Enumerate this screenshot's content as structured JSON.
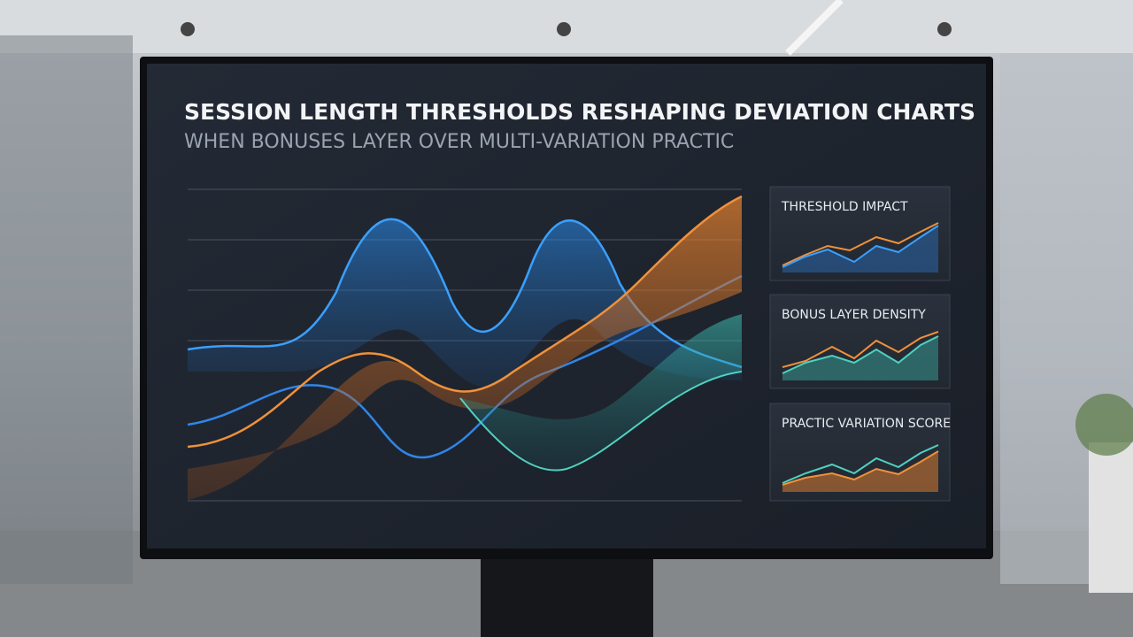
{
  "title": "SESSION LENGTH THRESHOLDS RESHAPING DEVIATION CHARTS",
  "subtitle": "WHEN BONUSES LAYER OVER MULTI-VARIATION PRACTIC",
  "panels": [
    {
      "label": "THRESHOLD IMPACT"
    },
    {
      "label": "BONUS LAYER DENSITY"
    },
    {
      "label": "PRACTIC VARIATION SCORE"
    }
  ]
}
